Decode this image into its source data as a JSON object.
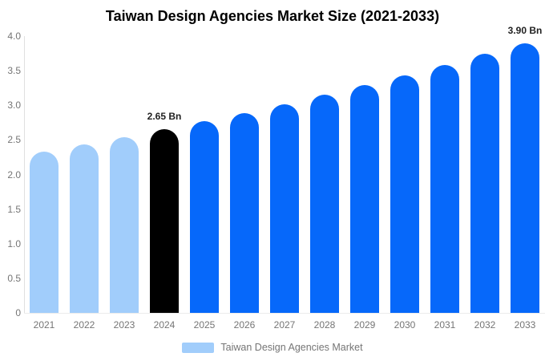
{
  "title": "Taiwan Design Agencies Market Size (2021-2033)",
  "legend": {
    "label": "Taiwan Design Agencies Market",
    "swatch_color": "#a1cdfb"
  },
  "colors": {
    "history_bar": "#a1cdfb",
    "highlight_bar": "#000000",
    "forecast_bar": "#0668fa",
    "axis_line": "#e0e0e0",
    "baseline": "#ebebeb",
    "tick_text": "#757575",
    "annotation_text": "#222222",
    "title_text": "#000000"
  },
  "chart_data": {
    "type": "bar",
    "title": "Taiwan Design Agencies Market Size (2021-2033)",
    "xlabel": "",
    "ylabel": "",
    "categories": [
      "2021",
      "2022",
      "2023",
      "2024",
      "2025",
      "2026",
      "2027",
      "2028",
      "2029",
      "2030",
      "2031",
      "2032",
      "2033"
    ],
    "values": [
      2.33,
      2.43,
      2.54,
      2.65,
      2.77,
      2.89,
      3.01,
      3.15,
      3.29,
      3.43,
      3.58,
      3.74,
      3.9
    ],
    "point_colors": [
      "#a1cdfb",
      "#a1cdfb",
      "#a1cdfb",
      "#000000",
      "#0668fa",
      "#0668fa",
      "#0668fa",
      "#0668fa",
      "#0668fa",
      "#0668fa",
      "#0668fa",
      "#0668fa",
      "#0668fa"
    ],
    "annotations": [
      {
        "category": "2024",
        "text": "2.65 Bn"
      },
      {
        "category": "2033",
        "text": "3.90 Bn"
      }
    ],
    "yticks": [
      "0",
      "0.5",
      "1.0",
      "1.5",
      "2.0",
      "2.5",
      "3.0",
      "3.5",
      "4.0"
    ],
    "ylim": [
      0,
      4
    ],
    "grid": false,
    "legend_position": "bottom",
    "legend_entries": [
      "Taiwan Design Agencies Market"
    ],
    "unit": "Bn"
  }
}
